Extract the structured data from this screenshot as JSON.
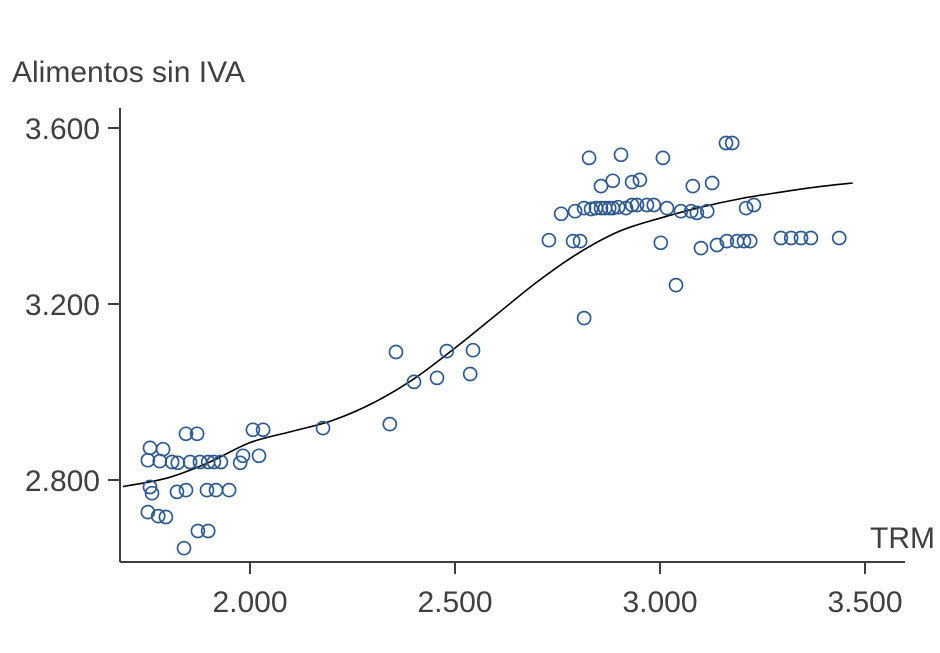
{
  "chart_data": {
    "type": "scatter",
    "title": "Alimentos sin IVA",
    "xlabel": "TRM",
    "ylabel": "Alimentos sin IVA",
    "xlim": [
      1.68,
      3.6
    ],
    "ylim": [
      2.6,
      3.65
    ],
    "grid": false,
    "legend": "none",
    "x_ticks": [
      {
        "value": 2.0,
        "label": "2.000"
      },
      {
        "value": 2.5,
        "label": "2.500"
      },
      {
        "value": 3.0,
        "label": "3.000"
      },
      {
        "value": 3.5,
        "label": "3.500"
      }
    ],
    "y_ticks": [
      {
        "value": 3.6,
        "label": "3.600"
      },
      {
        "value": 3.2,
        "label": "3.200"
      },
      {
        "value": 2.8,
        "label": "2.800"
      }
    ],
    "points": [
      [
        1.756,
        2.873
      ],
      [
        1.788,
        2.87
      ],
      [
        1.751,
        2.845
      ],
      [
        1.78,
        2.843
      ],
      [
        1.81,
        2.841
      ],
      [
        1.756,
        2.784
      ],
      [
        1.761,
        2.77
      ],
      [
        1.751,
        2.727
      ],
      [
        1.776,
        2.718
      ],
      [
        1.795,
        2.716
      ],
      [
        1.844,
        2.905
      ],
      [
        1.871,
        2.905
      ],
      [
        1.824,
        2.839
      ],
      [
        1.854,
        2.841
      ],
      [
        1.878,
        2.841
      ],
      [
        1.898,
        2.841
      ],
      [
        1.912,
        2.841
      ],
      [
        1.929,
        2.841
      ],
      [
        1.822,
        2.773
      ],
      [
        1.844,
        2.777
      ],
      [
        1.895,
        2.777
      ],
      [
        1.917,
        2.777
      ],
      [
        1.949,
        2.777
      ],
      [
        1.839,
        2.645
      ],
      [
        1.873,
        2.684
      ],
      [
        1.898,
        2.684
      ],
      [
        1.983,
        2.855
      ],
      [
        2.007,
        2.914
      ],
      [
        2.032,
        2.914
      ],
      [
        1.976,
        2.839
      ],
      [
        2.022,
        2.855
      ],
      [
        2.178,
        2.918
      ],
      [
        2.341,
        2.927
      ],
      [
        2.356,
        3.091
      ],
      [
        2.4,
        3.023
      ],
      [
        2.456,
        3.032
      ],
      [
        2.48,
        3.093
      ],
      [
        2.537,
        3.041
      ],
      [
        2.544,
        3.095
      ],
      [
        2.729,
        3.345
      ],
      [
        2.759,
        3.405
      ],
      [
        2.788,
        3.343
      ],
      [
        2.805,
        3.343
      ],
      [
        2.793,
        3.411
      ],
      [
        2.815,
        3.418
      ],
      [
        2.832,
        3.416
      ],
      [
        2.815,
        3.168
      ],
      [
        2.827,
        3.532
      ],
      [
        2.844,
        3.418
      ],
      [
        2.856,
        3.418
      ],
      [
        2.866,
        3.418
      ],
      [
        2.876,
        3.418
      ],
      [
        2.885,
        3.418
      ],
      [
        2.898,
        3.42
      ],
      [
        2.856,
        3.468
      ],
      [
        2.885,
        3.48
      ],
      [
        2.905,
        3.539
      ],
      [
        2.917,
        3.418
      ],
      [
        2.932,
        3.425
      ],
      [
        2.944,
        3.425
      ],
      [
        2.932,
        3.477
      ],
      [
        2.951,
        3.482
      ],
      [
        2.968,
        3.425
      ],
      [
        2.985,
        3.425
      ],
      [
        3.002,
        3.339
      ],
      [
        3.007,
        3.532
      ],
      [
        3.017,
        3.418
      ],
      [
        3.039,
        3.243
      ],
      [
        3.051,
        3.411
      ],
      [
        3.076,
        3.411
      ],
      [
        3.09,
        3.407
      ],
      [
        3.08,
        3.468
      ],
      [
        3.1,
        3.327
      ],
      [
        3.115,
        3.411
      ],
      [
        3.127,
        3.475
      ],
      [
        3.139,
        3.334
      ],
      [
        3.163,
        3.343
      ],
      [
        3.188,
        3.343
      ],
      [
        3.205,
        3.343
      ],
      [
        3.22,
        3.343
      ],
      [
        3.161,
        3.566
      ],
      [
        3.176,
        3.566
      ],
      [
        3.21,
        3.418
      ],
      [
        3.229,
        3.425
      ],
      [
        3.295,
        3.35
      ],
      [
        3.32,
        3.35
      ],
      [
        3.344,
        3.35
      ],
      [
        3.368,
        3.35
      ],
      [
        3.437,
        3.35
      ]
    ],
    "trend": [
      [
        1.69,
        2.785
      ],
      [
        1.8,
        2.805
      ],
      [
        1.9,
        2.84
      ],
      [
        2.0,
        2.885
      ],
      [
        2.1,
        2.91
      ],
      [
        2.2,
        2.935
      ],
      [
        2.3,
        2.975
      ],
      [
        2.4,
        3.03
      ],
      [
        2.5,
        3.1
      ],
      [
        2.6,
        3.175
      ],
      [
        2.7,
        3.25
      ],
      [
        2.8,
        3.315
      ],
      [
        2.9,
        3.365
      ],
      [
        3.0,
        3.395
      ],
      [
        3.1,
        3.42
      ],
      [
        3.2,
        3.44
      ],
      [
        3.3,
        3.455
      ],
      [
        3.4,
        3.468
      ],
      [
        3.47,
        3.475
      ]
    ],
    "colors": {
      "point": "#2e5a8e",
      "trend": "#000000",
      "axis": "#3f3f3f",
      "text": "#404040"
    }
  }
}
